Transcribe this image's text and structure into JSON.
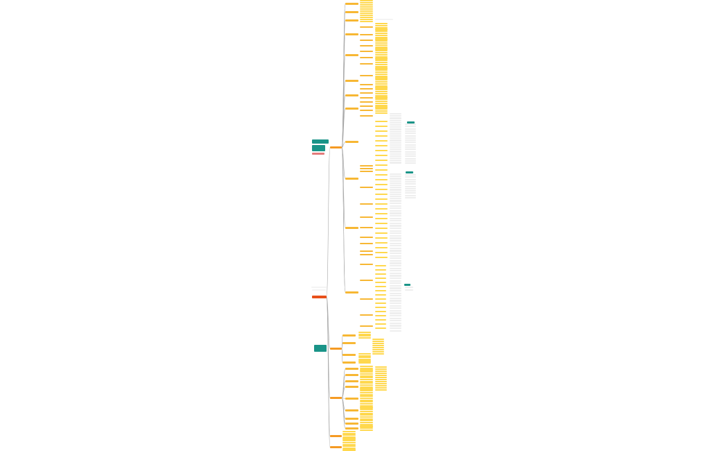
{
  "mindmap": {
    "root_label": "",
    "colors": {
      "root": "#e8501a",
      "branch": "#f59a23",
      "sub_branch": "#f7b733",
      "leaf": "#ffd84d",
      "note": "#eeeeee",
      "callout": "#1a9488",
      "line": "#a8a8a8"
    }
  }
}
